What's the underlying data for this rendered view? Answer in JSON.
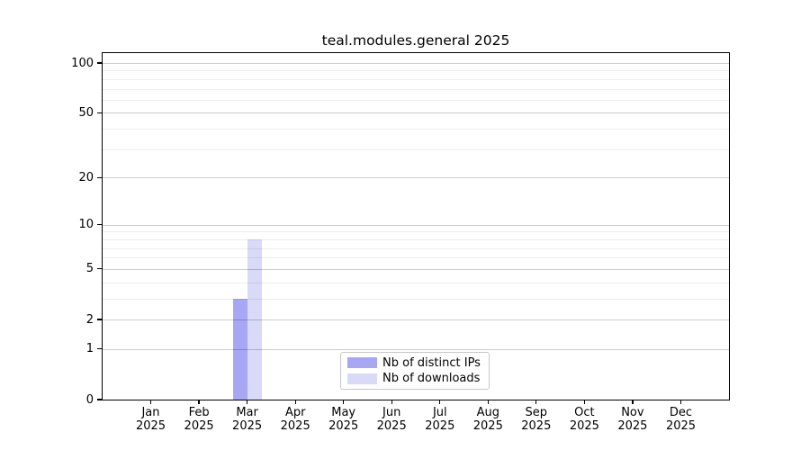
{
  "chart_data": {
    "type": "bar",
    "title": "teal.modules.general 2025",
    "months": [
      "Jan",
      "Feb",
      "Mar",
      "Apr",
      "May",
      "Jun",
      "Jul",
      "Aug",
      "Sep",
      "Oct",
      "Nov",
      "Dec"
    ],
    "x_year": "2025",
    "series": [
      {
        "name": "Nb of distinct IPs",
        "color": "#a7a7f6",
        "values": [
          0,
          0,
          3,
          0,
          0,
          0,
          0,
          0,
          0,
          0,
          0,
          0
        ]
      },
      {
        "name": "Nb of downloads",
        "color": "#d9d9f8",
        "values": [
          0,
          0,
          8,
          0,
          0,
          0,
          0,
          0,
          0,
          0,
          0,
          0
        ]
      }
    ],
    "y_scale": "log10(1+x)",
    "y_ticks": [
      0,
      1,
      2,
      5,
      10,
      20,
      50,
      100
    ],
    "y_minor_ticks": [
      3,
      4,
      6,
      7,
      8,
      9,
      30,
      40,
      60,
      70,
      80,
      90
    ],
    "ylim": [
      0,
      115
    ],
    "grid": true,
    "legend_position": "inside-bottom-center"
  },
  "colors": {
    "bar_distinct_ips": "#a7a7f6",
    "bar_downloads": "#d9d9f8",
    "axis": "#000000",
    "grid_major": "#cccccc",
    "grid_minor": "#ededed",
    "legend_border": "#c7c7c7",
    "background": "#ffffff",
    "text": "#000000"
  }
}
